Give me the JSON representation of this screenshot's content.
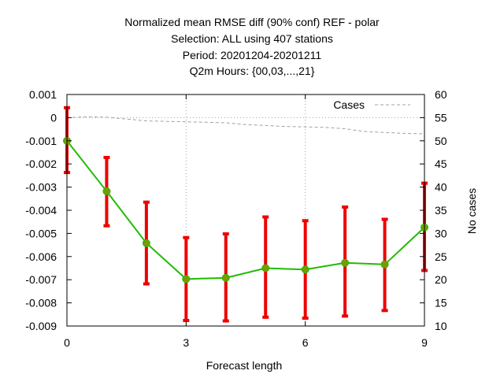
{
  "title_lines": [
    "Normalized mean RMSE diff (90% conf) REF - polar",
    "Selection: ALL using   407 stations",
    "Period: 20201204-20201211",
    "Q2m   Hours: {00,03,...,21}"
  ],
  "chart_data": {
    "type": "line",
    "xlabel": "Forecast length",
    "ylabel": "",
    "y2label": "No cases",
    "xlim": [
      0,
      9
    ],
    "ylim": [
      -0.009,
      0.001
    ],
    "y2lim": [
      10,
      60
    ],
    "x_ticks": [
      0,
      3,
      6,
      9
    ],
    "y_ticks": [
      0.001,
      0,
      -0.001,
      -0.002,
      -0.003,
      -0.004,
      -0.005,
      -0.006,
      -0.007,
      -0.008,
      -0.009
    ],
    "y_tick_labels": [
      "0.001",
      "0",
      "-0.001",
      "-0.002",
      "-0.003",
      "-0.004",
      "-0.005",
      "-0.006",
      "-0.007",
      "-0.008",
      "-0.009"
    ],
    "y2_ticks": [
      60,
      55,
      50,
      45,
      40,
      35,
      30,
      25,
      20,
      15,
      10
    ],
    "grid": true,
    "legend_position": "top-right",
    "series": [
      {
        "type": "errorbar-line",
        "x": [
          0,
          1,
          2,
          3,
          4,
          5,
          6,
          7,
          8,
          9
        ],
        "y": [
          -0.001,
          -0.00318,
          -0.00542,
          -0.00697,
          -0.00692,
          -0.0065,
          -0.00656,
          -0.00627,
          -0.00634,
          -0.00474
        ],
        "lower": [
          -0.00237,
          -0.00467,
          -0.00718,
          -0.00876,
          -0.00878,
          -0.00862,
          -0.00866,
          -0.00857,
          -0.00833,
          -0.0066
        ],
        "upper": [
          0.00043,
          -0.00172,
          -0.00365,
          -0.00518,
          -0.00502,
          -0.00429,
          -0.00445,
          -0.00386,
          -0.00439,
          -0.00283
        ],
        "line_color": "#22bb00",
        "marker_color": "#7a9a00",
        "errorbar_color": "#ee0000"
      },
      {
        "name": "Cases",
        "axis": "y2",
        "line_style": "dashed",
        "color": "#a0a0a0",
        "x": [
          0,
          0.5,
          1,
          1.5,
          2,
          2.5,
          3,
          3.5,
          4,
          4.5,
          5,
          5.5,
          6,
          6.5,
          7,
          7.5,
          8,
          8.5,
          9
        ],
        "y": [
          55,
          55.2,
          55.1,
          54.7,
          54.3,
          54.2,
          54.1,
          54,
          53.9,
          53.5,
          53.3,
          53.1,
          53,
          52.9,
          52.6,
          52,
          51.8,
          51.6,
          51.5
        ]
      }
    ]
  }
}
